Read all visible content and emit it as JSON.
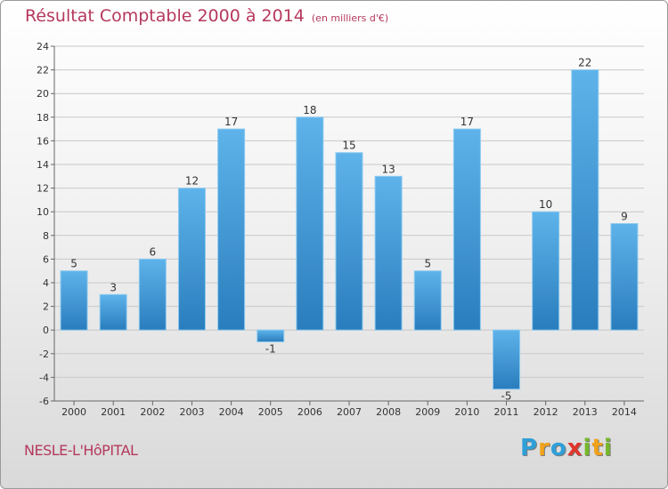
{
  "header": {
    "title": "Résultat Comptable 2000 à 2014",
    "unit": "(en milliers d'€)"
  },
  "footer": {
    "commune": "NESLE-L'HôPITAL",
    "brand_letters": [
      "P",
      "r",
      "o",
      "x",
      "i",
      "t",
      "i"
    ],
    "brand_colors": [
      "#2f9fd8",
      "#f0a21a",
      "#2f9fd8",
      "#e0352b",
      "#76b82a",
      "#f0a21a",
      "#76b82a"
    ]
  },
  "colors": {
    "title": "#b5385c",
    "bar_light": "#5eb3ea",
    "bar_dark": "#2a7dbd",
    "grid": "#c8c8c8",
    "axis_text": "#333333"
  },
  "chart_data": {
    "type": "bar",
    "title": "Résultat Comptable 2000 à 2014",
    "xlabel": "",
    "ylabel": "",
    "categories": [
      "2000",
      "2001",
      "2002",
      "2003",
      "2004",
      "2005",
      "2006",
      "2007",
      "2008",
      "2009",
      "2010",
      "2011",
      "2012",
      "2013",
      "2014"
    ],
    "values": [
      5,
      3,
      6,
      12,
      17,
      -1,
      18,
      15,
      13,
      5,
      17,
      -5,
      10,
      22,
      9
    ],
    "ylim": [
      -6,
      24
    ],
    "yticks": [
      -6,
      -4,
      -2,
      0,
      2,
      4,
      6,
      8,
      10,
      12,
      14,
      16,
      18,
      20,
      22,
      24
    ],
    "grid": true
  }
}
